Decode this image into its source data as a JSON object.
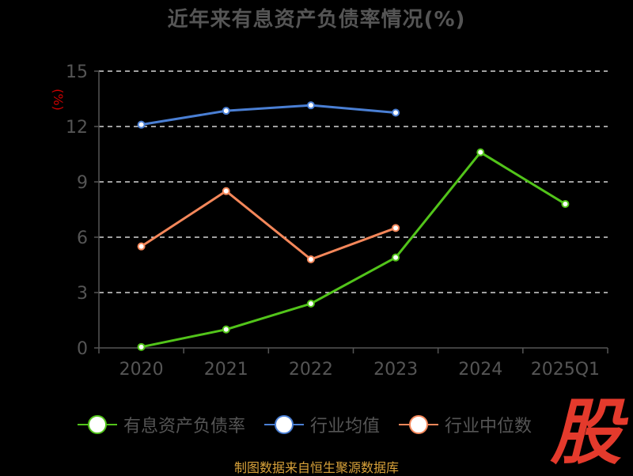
{
  "title": "近年来有息资产负债率情况(%)",
  "y_unit": "(%)",
  "source": "制图数据来自恒生聚源数据库",
  "logo_text": "股",
  "colors": {
    "background": "#000000",
    "grid": "#ffffff",
    "axis_text": "#555555",
    "unit_text": "#cc0000",
    "source_text": "#d8a23a",
    "logo": "#e43a2c"
  },
  "chart_data": {
    "type": "line",
    "title": "近年来有息资产负债率情况(%)",
    "xlabel": "",
    "ylabel": "(%)",
    "categories": [
      "2020",
      "2021",
      "2022",
      "2023",
      "2024",
      "2025Q1"
    ],
    "ylim": [
      0,
      15
    ],
    "yticks": [
      0,
      3,
      6,
      9,
      12,
      15
    ],
    "grid": true,
    "legend_position": "bottom",
    "series": [
      {
        "name": "有息资产负债率",
        "color": "#52c41a",
        "values": [
          0.05,
          1.0,
          2.4,
          4.9,
          10.6,
          7.8
        ]
      },
      {
        "name": "行业均值",
        "color": "#4a7fd4",
        "values": [
          12.1,
          12.85,
          13.15,
          12.75,
          null,
          null
        ]
      },
      {
        "name": "行业中位数",
        "color": "#f4875a",
        "values": [
          5.5,
          8.5,
          4.8,
          6.5,
          null,
          null
        ]
      }
    ]
  }
}
